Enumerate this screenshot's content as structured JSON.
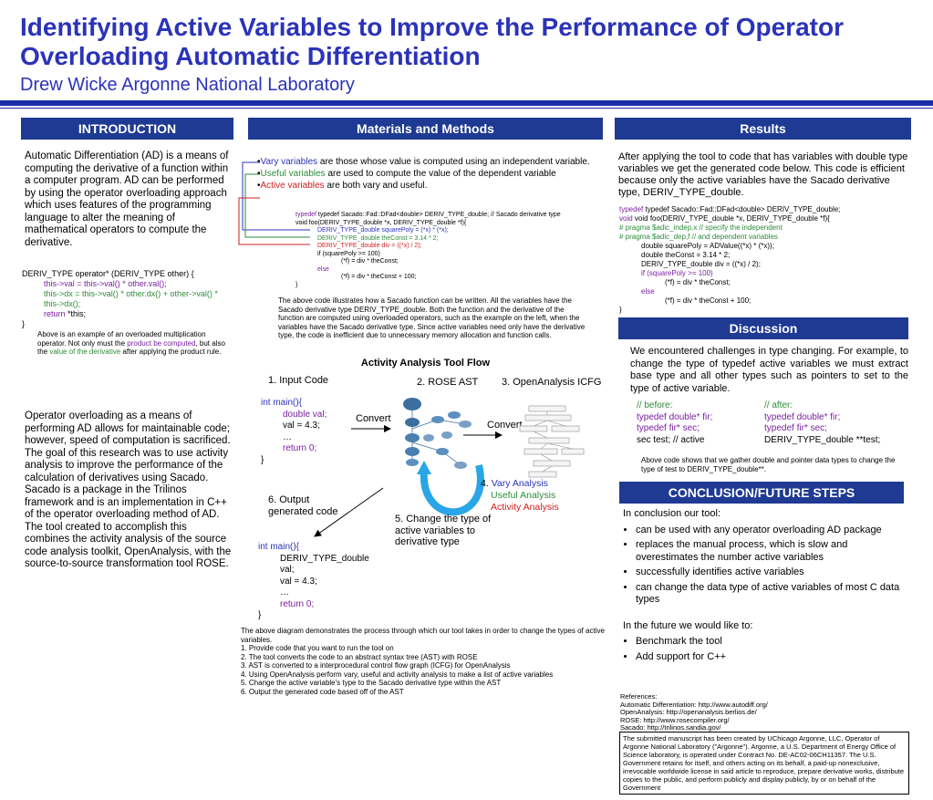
{
  "title": "Identifying Active Variables to Improve the Performance of Operator Overloading Automatic Differentiation",
  "subtitle": "Drew Wicke Argonne National Laboratory",
  "headers": {
    "introduction": "INTRODUCTION",
    "materials": "Materials and Methods",
    "results": "Results",
    "discussion": "Discussion",
    "conclusion": "CONCLUSION/FUTURE STEPS"
  },
  "intro": {
    "p1": "Automatic Differentiation (AD) is a means of computing the derivative of a function within a computer program. AD can be performed by using the operator overloading approach which uses features of the programming language to alter the meaning of mathematical operators to compute the derivative.",
    "code_l1": "DERIV_TYPE operator* (DERIV_TYPE other) {",
    "code_l2": "this->val = this->val() * other.val();",
    "code_l3": "this->dx = this->val() * other.dx() +          other->val() * this->dx();",
    "code_ret_kw": "return",
    "code_ret": " *this;",
    "code_close": "}",
    "caption_a": "Above is an example of an overloaded multiplication operator.  Not only must the ",
    "caption_b": "product be computed",
    "caption_c": ", but also the ",
    "caption_d": "value of the derivative",
    "caption_e": " after applying the product rule.",
    "p2": "Operator overloading as a means of performing AD allows for maintainable code; however, speed of computation is sacrificed. The goal of this research was to use activity analysis to improve the performance of the calculation of derivatives using Sacado.  Sacado is a package in the Trilinos framework and is an implementation in C++ of the operator overloading method of AD.  The tool created to accomplish this combines the activity analysis of the source code analysis toolkit, OpenAnalysis, with the source-to-source transformation tool ROSE."
  },
  "materials": {
    "def1_term": "Vary variables",
    "def1_rest": " are those whose value is computed using an independent variable.",
    "def2_term": "Useful variables",
    "def2_rest": " are used to compute the value of the dependent variable",
    "def3_term": "Active variables",
    "def3_rest": " are both vary and useful.",
    "sacado_code": [
      "typedef Sacado::Fad::DFad<double> DERIV_TYPE_double; // Sacado derivative type",
      "void foo(DERIV_TYPE_double *x, DERIV_TYPE_double *f){",
      "DERIV_TYPE_double squarePoly = (*x) * (*x);",
      "DERIV_TYPE_double theConst = 3.14 * 2;",
      "DERIV_TYPE_double div = ((*x) / 2);",
      "if (squarePoly >= 100)",
      "(*f) = div * theConst;",
      "else",
      "(*f) = div * theConst + 100;",
      "}"
    ],
    "sacado_caption": "The above code illustrates how a Sacado function can be written. All the variables have the Sacado derivative type DERIV_TYPE_double.  Both the function and the derivative of the function are computed using overloaded operators, such as the example on the left, when the variables have the Sacado derivative type.  Since active variables need only have the derivative type, the code is inefficient due to unnecessary memory allocation and function calls.",
    "flow_title": "Activity Analysis Tool Flow",
    "step1": "1. Input Code",
    "step2": "2. ROSE AST",
    "step3": "3. OpenAnalysis ICFG",
    "convert1": "Convert",
    "convert2": "Convert",
    "step4_num": "4. ",
    "step4_a": "Vary Analysis",
    "step4_b": "Useful Analysis",
    "step4_c": "Activity Analysis",
    "step5": "5. Change the type of active variables to derivative type",
    "step6": "6. Output generated code",
    "in_code": [
      "int main(){",
      "double val;",
      "val = 4.3;",
      "…",
      "return 0;",
      "}"
    ],
    "out_code": [
      "int main(){",
      "DERIV_TYPE_double val;",
      "val = 4.3;",
      "…",
      "return 0;",
      "}"
    ],
    "flow_caption": "The above diagram demonstrates the process through which our tool takes in order to change the types of active variables.",
    "flow_steps": [
      "1.  Provide code that you want to run the tool on",
      "2.  The tool converts the code to an abstract syntax tree (AST) with ROSE",
      "3.  AST is converted to a interprocedural control flow graph (ICFG) for OpenAnalysis",
      "4.  Using OpenAnalysis perform vary, useful and activity analysis to make a list of active variables",
      "5.  Change the active variable's type to the Sacado derivative type within the AST",
      "6.  Output the generated code based off of the AST"
    ]
  },
  "results": {
    "p1": "After applying the tool to code that has variables with double type variables we get the generated code below. This code is efficient because only the active variables have the Sacado derivative type, DERIV_TYPE_double.",
    "code": [
      "typedef Sacado::Fad::DFad<double> DERIV_TYPE_double;",
      "void foo(DERIV_TYPE_double *x, DERIV_TYPE_double *f){",
      "# pragma $adic_indep,x // specify the independent",
      "# pragma $adic_dep,f    // and dependent variables",
      "double squarePoly = ADValue((*x) * (*x));",
      "double theConst = 3.14 * 2;",
      "DERIV_TYPE_double div = ((*x) / 2);",
      "if (squarePoly >= 100)",
      "(*f) = div * theConst;",
      "else",
      "(*f) = div * theConst + 100;",
      "}"
    ]
  },
  "discussion": {
    "p1": "We encountered challenges in type changing.  For example, to change the type of typedef active variables we must extract base type and all other types such as pointers to set to the type of active variable.",
    "before_hdr": "// before:",
    "after_hdr": "// after:",
    "before": [
      "typedef double* fir;",
      "typedef fir* sec;",
      "sec test; // active"
    ],
    "after": [
      "typedef double* fir;",
      "typedef fir* sec;",
      "DERIV_TYPE_double **test;"
    ],
    "caption": "Above code shows that we gather double and pointer data types to change the type of test to DERIV_TYPE_double**."
  },
  "conclusion": {
    "intro": "In conclusion our tool:",
    "bullets": [
      "can be used with any operator overloading AD package",
      "replaces the manual process, which is slow and overestimates the number active variables",
      "successfully identifies active variables",
      "can change the data type of active variables of most C data types"
    ],
    "future_intro": "In the future we would like to:",
    "future": [
      "Benchmark the tool",
      "Add support for C++"
    ]
  },
  "references": [
    "References:",
    "Automatic Differentiation: http://www.autodiff.org/",
    "OpenAnalysis: http://openanalysis.berlios.de/",
    "ROSE: http://www.rosecompiler.org/",
    "Sacado: http://trilinos.sandia.gov/"
  ],
  "disclaimer": "The submitted manuscript has been created by UChicago Argonne, LLC, Operator of Argonne National Laboratory (\"Argonne\"). Argonne, a U.S. Department of Energy Office of Science laboratory, is operated under Contract No. DE-AC02-06CH11357. The U.S. Government retains for itself, and others acting on its behalf, a paid-up nonexclusive, irrevocable worldwide license in said article to reproduce, prepare derivative works, distribute copies to the public, and perform publicly and display publicly, by or on behalf of the Government",
  "colors": {
    "title": "#2b33b8",
    "header_bg": "#1f3a93",
    "keyword": "#7a1fa0",
    "vary": "#2b33b8",
    "useful": "#2e8b3a",
    "active": "#d02020"
  }
}
